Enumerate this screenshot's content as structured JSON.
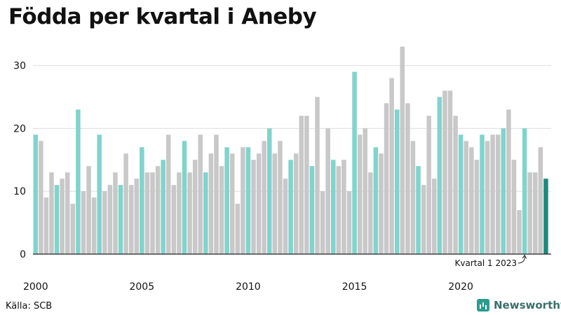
{
  "title": "Födda per kvartal i Aneby",
  "source": "Källa: SCB",
  "brand": {
    "name": "Newsworthy",
    "icon": "newsworthy-logo-icon"
  },
  "colors": {
    "q1": "#80d4cc",
    "other": "#c8c8c8",
    "latest": "#1a8a7c"
  },
  "chart_data": {
    "type": "bar",
    "title": "Födda per kvartal i Aneby",
    "xlabel": "",
    "ylabel": "",
    "ylim": [
      0,
      33
    ],
    "y_ticks": [
      "0",
      "10",
      "20",
      "30"
    ],
    "x_ticks": [
      "2000",
      "2005",
      "2010",
      "2015",
      "2020"
    ],
    "grid": true,
    "first_period": "2000 Q1",
    "values": [
      19,
      18,
      9,
      13,
      11,
      12,
      13,
      8,
      23,
      10,
      14,
      9,
      19,
      10,
      11,
      13,
      11,
      16,
      11,
      12,
      17,
      13,
      13,
      14,
      15,
      19,
      11,
      13,
      18,
      13,
      15,
      19,
      13,
      16,
      19,
      14,
      17,
      16,
      8,
      17,
      17,
      15,
      16,
      18,
      20,
      16,
      18,
      12,
      15,
      16,
      22,
      22,
      14,
      25,
      10,
      20,
      15,
      14,
      15,
      10,
      29,
      19,
      20,
      13,
      17,
      16,
      24,
      28,
      23,
      33,
      24,
      18,
      14,
      11,
      22,
      12,
      25,
      26,
      26,
      22,
      19,
      18,
      17,
      15,
      19,
      18,
      19,
      19,
      20,
      23,
      15,
      7,
      20,
      13,
      13,
      17,
      12
    ],
    "annotation": "Kvartal 1 2023"
  }
}
